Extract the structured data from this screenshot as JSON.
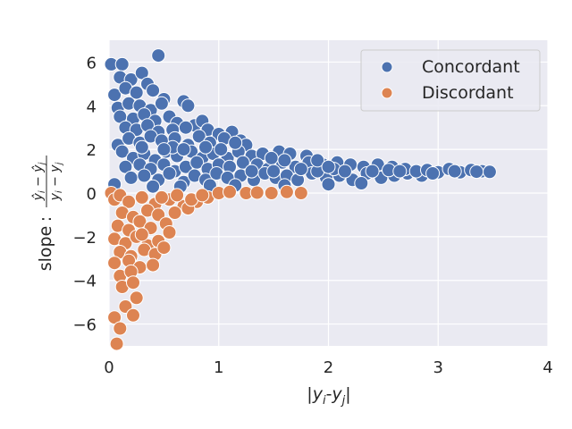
{
  "chart_data": {
    "type": "scatter",
    "title": "",
    "xlabel": "|y_i-y_j|",
    "ylabel": "slope",
    "ylabel_formula": "(ŷ_i − ŷ_j)/(y_i − y_j)",
    "xlim": [
      0,
      4
    ],
    "ylim": [
      -7,
      7
    ],
    "xticks": [
      "0",
      "1",
      "2",
      "3",
      "4"
    ],
    "yticks": [
      "−6",
      "−4",
      "−2",
      "0",
      "2",
      "4",
      "6"
    ],
    "grid": true,
    "legend_position": "top-right",
    "series": [
      {
        "name": "Concordant",
        "color": "#4c72b0",
        "points": [
          [
            0.02,
            5.9
          ],
          [
            0.12,
            5.9
          ],
          [
            0.45,
            6.3
          ],
          [
            0.1,
            5.3
          ],
          [
            0.2,
            5.2
          ],
          [
            0.3,
            5.5
          ],
          [
            0.35,
            5.0
          ],
          [
            0.05,
            4.5
          ],
          [
            0.15,
            4.8
          ],
          [
            0.25,
            4.6
          ],
          [
            0.4,
            4.7
          ],
          [
            0.5,
            4.3
          ],
          [
            0.08,
            3.9
          ],
          [
            0.18,
            4.1
          ],
          [
            0.28,
            4.0
          ],
          [
            0.38,
            3.8
          ],
          [
            0.48,
            4.1
          ],
          [
            0.68,
            4.2
          ],
          [
            0.72,
            4.0
          ],
          [
            0.1,
            3.5
          ],
          [
            0.22,
            3.4
          ],
          [
            0.32,
            3.6
          ],
          [
            0.42,
            3.3
          ],
          [
            0.55,
            3.5
          ],
          [
            0.62,
            3.2
          ],
          [
            0.78,
            3.1
          ],
          [
            0.85,
            3.3
          ],
          [
            0.15,
            3.0
          ],
          [
            0.25,
            2.9
          ],
          [
            0.35,
            3.1
          ],
          [
            0.45,
            2.8
          ],
          [
            0.58,
            2.9
          ],
          [
            0.7,
            3.0
          ],
          [
            0.9,
            2.9
          ],
          [
            1.0,
            2.7
          ],
          [
            1.12,
            2.8
          ],
          [
            0.08,
            2.2
          ],
          [
            0.18,
            2.5
          ],
          [
            0.28,
            2.3
          ],
          [
            0.38,
            2.6
          ],
          [
            0.48,
            2.4
          ],
          [
            0.6,
            2.5
          ],
          [
            0.72,
            2.2
          ],
          [
            0.82,
            2.6
          ],
          [
            0.92,
            2.3
          ],
          [
            1.05,
            2.5
          ],
          [
            1.2,
            2.4
          ],
          [
            1.25,
            2.2
          ],
          [
            0.12,
            1.9
          ],
          [
            0.22,
            1.6
          ],
          [
            0.32,
            1.8
          ],
          [
            0.42,
            1.5
          ],
          [
            0.52,
            1.9
          ],
          [
            0.62,
            1.7
          ],
          [
            0.75,
            1.9
          ],
          [
            0.85,
            1.6
          ],
          [
            0.95,
            1.8
          ],
          [
            1.08,
            1.6
          ],
          [
            1.18,
            1.9
          ],
          [
            1.3,
            1.7
          ],
          [
            1.4,
            1.8
          ],
          [
            1.55,
            1.9
          ],
          [
            1.65,
            1.8
          ],
          [
            1.8,
            1.7
          ],
          [
            0.15,
            1.2
          ],
          [
            0.28,
            1.3
          ],
          [
            0.38,
            1.1
          ],
          [
            0.5,
            1.3
          ],
          [
            0.6,
            1.0
          ],
          [
            0.7,
            1.2
          ],
          [
            0.8,
            1.4
          ],
          [
            0.9,
            1.1
          ],
          [
            1.0,
            1.3
          ],
          [
            1.1,
            1.2
          ],
          [
            1.22,
            1.4
          ],
          [
            1.35,
            1.3
          ],
          [
            1.45,
            1.1
          ],
          [
            1.58,
            1.4
          ],
          [
            1.7,
            1.2
          ],
          [
            1.82,
            1.4
          ],
          [
            1.95,
            1.3
          ],
          [
            2.08,
            1.4
          ],
          [
            2.2,
            1.3
          ],
          [
            2.32,
            1.2
          ],
          [
            2.45,
            1.3
          ],
          [
            2.58,
            1.2
          ],
          [
            0.2,
            0.7
          ],
          [
            0.32,
            0.8
          ],
          [
            0.45,
            0.6
          ],
          [
            0.55,
            0.9
          ],
          [
            0.68,
            0.5
          ],
          [
            0.78,
            0.8
          ],
          [
            0.88,
            0.6
          ],
          [
            0.98,
            0.9
          ],
          [
            1.08,
            0.7
          ],
          [
            1.2,
            0.8
          ],
          [
            1.32,
            0.6
          ],
          [
            1.42,
            0.9
          ],
          [
            1.52,
            0.7
          ],
          [
            1.62,
            0.8
          ],
          [
            1.72,
            0.6
          ],
          [
            1.85,
            0.9
          ],
          [
            1.98,
            0.7
          ],
          [
            2.1,
            0.8
          ],
          [
            2.22,
            0.6
          ],
          [
            2.35,
            0.9
          ],
          [
            2.48,
            0.7
          ],
          [
            2.6,
            0.8
          ],
          [
            2.72,
            0.9
          ],
          [
            2.85,
            0.8
          ],
          [
            0.05,
            0.4
          ],
          [
            0.4,
            0.3
          ],
          [
            0.65,
            0.3
          ],
          [
            0.92,
            0.35
          ],
          [
            1.15,
            0.35
          ],
          [
            1.6,
            0.35
          ],
          [
            2.0,
            0.4
          ],
          [
            2.3,
            0.45
          ],
          [
            2.7,
            1.1
          ],
          [
            2.8,
            1.0
          ],
          [
            2.9,
            1.05
          ],
          [
            3.0,
            0.95
          ],
          [
            3.1,
            1.1
          ],
          [
            3.2,
            0.95
          ],
          [
            3.3,
            1.05
          ],
          [
            3.4,
            1.0
          ],
          [
            3.47,
            0.97
          ],
          [
            2.95,
            0.9
          ],
          [
            3.15,
            1.0
          ],
          [
            3.35,
            0.98
          ],
          [
            1.75,
            1.1
          ],
          [
            1.9,
            1.0
          ],
          [
            2.05,
            1.1
          ],
          [
            2.15,
            1.0
          ],
          [
            2.4,
            1.0
          ],
          [
            2.55,
            1.05
          ],
          [
            2.65,
            1.0
          ],
          [
            0.58,
            2.1
          ],
          [
            0.88,
            2.1
          ],
          [
            1.02,
            2.0
          ],
          [
            1.15,
            2.3
          ],
          [
            0.3,
            2.1
          ],
          [
            0.5,
            2.0
          ],
          [
            0.68,
            2.0
          ],
          [
            1.48,
            1.6
          ],
          [
            1.6,
            1.5
          ],
          [
            1.9,
            1.5
          ],
          [
            2.0,
            1.2
          ],
          [
            1.3,
            1.0
          ],
          [
            1.5,
            1.0
          ]
        ]
      },
      {
        "name": "Discordant",
        "color": "#dd8452",
        "points": [
          [
            0.02,
            0.0
          ],
          [
            0.05,
            -0.3
          ],
          [
            0.1,
            -0.1
          ],
          [
            0.18,
            -0.4
          ],
          [
            0.3,
            -0.2
          ],
          [
            0.42,
            -0.5
          ],
          [
            0.55,
            -0.3
          ],
          [
            0.68,
            -0.6
          ],
          [
            0.8,
            -0.4
          ],
          [
            0.9,
            -0.2
          ],
          [
            1.0,
            0.0
          ],
          [
            1.1,
            0.05
          ],
          [
            1.25,
            0.0
          ],
          [
            1.35,
            0.02
          ],
          [
            1.48,
            0.0
          ],
          [
            1.62,
            0.05
          ],
          [
            1.75,
            0.0
          ],
          [
            0.12,
            -0.9
          ],
          [
            0.22,
            -1.1
          ],
          [
            0.35,
            -0.8
          ],
          [
            0.45,
            -1.0
          ],
          [
            0.6,
            -0.9
          ],
          [
            0.72,
            -0.7
          ],
          [
            0.08,
            -1.5
          ],
          [
            0.18,
            -1.7
          ],
          [
            0.28,
            -1.3
          ],
          [
            0.38,
            -1.6
          ],
          [
            0.52,
            -1.4
          ],
          [
            0.05,
            -2.1
          ],
          [
            0.15,
            -2.3
          ],
          [
            0.25,
            -2.0
          ],
          [
            0.35,
            -2.4
          ],
          [
            0.45,
            -2.2
          ],
          [
            0.55,
            -1.8
          ],
          [
            0.1,
            -2.7
          ],
          [
            0.2,
            -2.9
          ],
          [
            0.32,
            -2.6
          ],
          [
            0.42,
            -2.8
          ],
          [
            0.05,
            -3.2
          ],
          [
            0.18,
            -3.1
          ],
          [
            0.28,
            -3.4
          ],
          [
            0.4,
            -3.3
          ],
          [
            0.1,
            -3.8
          ],
          [
            0.2,
            -3.6
          ],
          [
            0.12,
            -4.3
          ],
          [
            0.22,
            -4.1
          ],
          [
            0.25,
            -4.8
          ],
          [
            0.15,
            -5.2
          ],
          [
            0.22,
            -5.6
          ],
          [
            0.05,
            -5.7
          ],
          [
            0.1,
            -6.2
          ],
          [
            0.07,
            -6.9
          ],
          [
            0.48,
            -0.2
          ],
          [
            0.62,
            -0.1
          ],
          [
            0.75,
            -0.3
          ],
          [
            0.85,
            -0.1
          ],
          [
            0.3,
            -1.9
          ],
          [
            0.5,
            -2.5
          ]
        ]
      }
    ]
  }
}
